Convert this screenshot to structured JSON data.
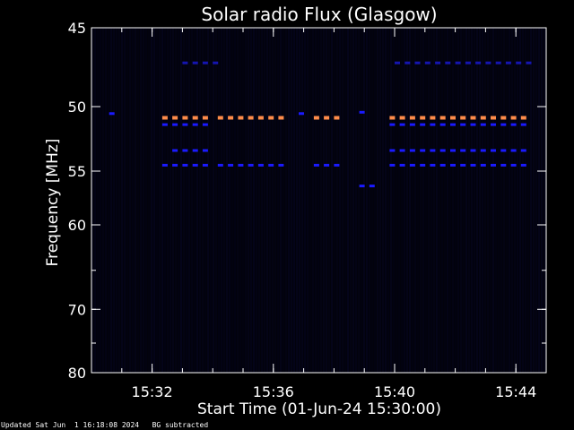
{
  "chart_data": {
    "type": "heatmap",
    "title": "Solar radio Flux (Glasgow)",
    "xlabel": "Start Time (01-Jun-24 15:30:00)",
    "ylabel": "Frequency [MHz]",
    "x_range_minutes": [
      "15:30",
      "15:45"
    ],
    "y_range_mhz": [
      45,
      80
    ],
    "x_ticks": [
      "15:32",
      "15:36",
      "15:40",
      "15:44"
    ],
    "y_ticks": [
      45,
      50,
      55,
      60,
      70,
      80
    ],
    "y_tick_labels": [
      "45",
      "50",
      "55",
      "60",
      "70",
      "80"
    ],
    "colormap": [
      "#000000",
      "#0b0b3a",
      "#1a1aff",
      "#ff8c4a"
    ],
    "bursts": [
      {
        "freq_mhz": 50.8,
        "intensity": "high",
        "time_ranges": [
          [
            "15:32:20",
            "15:33:40"
          ],
          [
            "15:34:10",
            "15:36:20"
          ],
          [
            "15:37:20",
            "15:38:00"
          ],
          [
            "15:39:50",
            "15:44:20"
          ]
        ]
      },
      {
        "freq_mhz": 51.3,
        "intensity": "medium",
        "time_ranges": [
          [
            "15:32:20",
            "15:33:40"
          ],
          [
            "15:39:50",
            "15:44:20"
          ]
        ]
      },
      {
        "freq_mhz": 53.3,
        "intensity": "medium",
        "time_ranges": [
          [
            "15:32:40",
            "15:33:40"
          ],
          [
            "15:39:50",
            "15:44:20"
          ]
        ]
      },
      {
        "freq_mhz": 54.5,
        "intensity": "medium",
        "time_ranges": [
          [
            "15:32:20",
            "15:33:40"
          ],
          [
            "15:34:10",
            "15:36:20"
          ],
          [
            "15:37:20",
            "15:38:00"
          ],
          [
            "15:39:50",
            "15:44:20"
          ]
        ]
      },
      {
        "freq_mhz": 56.3,
        "intensity": "medium",
        "time_ranges": [
          [
            "15:38:50",
            "15:39:20"
          ]
        ]
      },
      {
        "freq_mhz": 50.4,
        "intensity": "medium",
        "time_ranges": [
          [
            "15:38:50",
            "15:39:05"
          ]
        ]
      },
      {
        "freq_mhz": 47.1,
        "intensity": "low",
        "time_ranges": [
          [
            "15:33:00",
            "15:34:00"
          ],
          [
            "15:40:00",
            "15:44:30"
          ]
        ]
      },
      {
        "freq_mhz": 50.5,
        "intensity": "medium",
        "time_ranges": [
          [
            "15:30:35",
            "15:30:45"
          ],
          [
            "15:36:50",
            "15:37:00"
          ]
        ]
      }
    ]
  },
  "footer": {
    "updated": "Updated Sat Jun  1 16:18:08 2024",
    "note": "BG subtracted"
  }
}
